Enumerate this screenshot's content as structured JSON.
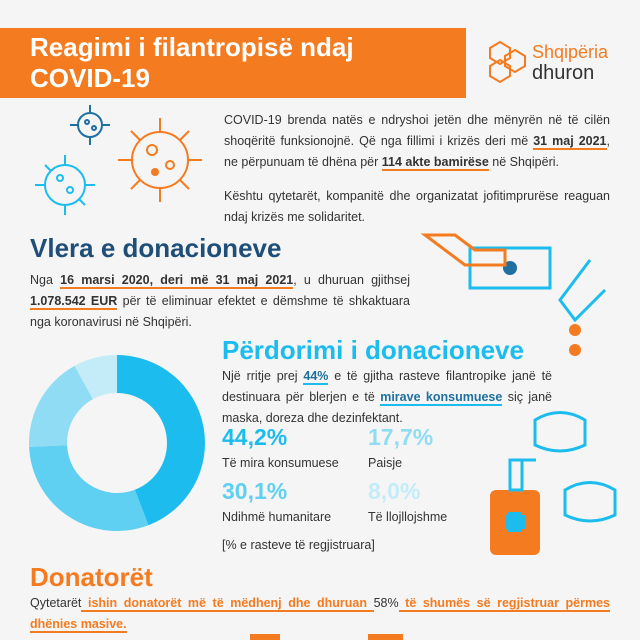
{
  "header": {
    "title": "Reagimi i filantropisë ndaj COVID-19",
    "logo_top": "Shqipëria",
    "logo_bottom": "dhuron"
  },
  "intro": [
    [
      "COVID-19 brenda natës e ndryshoi jetën dhe mënyrën në të cilën shoqëritë funksionojnë. Që nga fillimi i krizës deri më ",
      "31 maj 2021",
      ", ne përpunuam të dhëna për ",
      "114 akte bamirëse",
      " në Shqipëri."
    ],
    [
      "Kështu qytetarët, kompanitë dhe organizatat jofitimprurëse reaguan ndaj krizës me solidaritet."
    ]
  ],
  "value_section": {
    "heading": "Vlera e donacioneve",
    "text": [
      "Nga ",
      "16 marsi 2020, deri më 31 maj 2021",
      ", u dhuruan gjithsej ",
      "1.078.542 EUR",
      " për të eliminuar efektet e dëmshme të shkaktuara nga koronavirusi në Shqipëri."
    ]
  },
  "chart_data": {
    "type": "pie",
    "title": "Përdorimi i donacioneve",
    "text": [
      "Një rritje prej ",
      "44%",
      " e të gjitha rasteve filantropike janë të destinuara për blerjen e të ",
      "mirave konsumuese",
      " siç janë maska, doreza dhe dezinfektant."
    ],
    "categories": [
      "Të mira konsumuese",
      "Ndihmë humanitare",
      "Paisje",
      "Të llojllojshme"
    ],
    "values": [
      44.2,
      30.1,
      17.7,
      8.0
    ],
    "value_labels": [
      "44,2%",
      "30,1%",
      "17,7%",
      "8,0%"
    ],
    "colors": [
      "#1cbdee",
      "#5fd0f1",
      "#8fdcf4",
      "#c4ecf8"
    ],
    "note": "[% e rasteve të regjistruara]"
  },
  "donors": {
    "heading": "Donatorët",
    "text": [
      "Qytetarët",
      " ishin donatorët më të mëdhenj dhe dhuruan ",
      "58%",
      " të shumës së regjistruar përmes dhënies masive."
    ]
  }
}
